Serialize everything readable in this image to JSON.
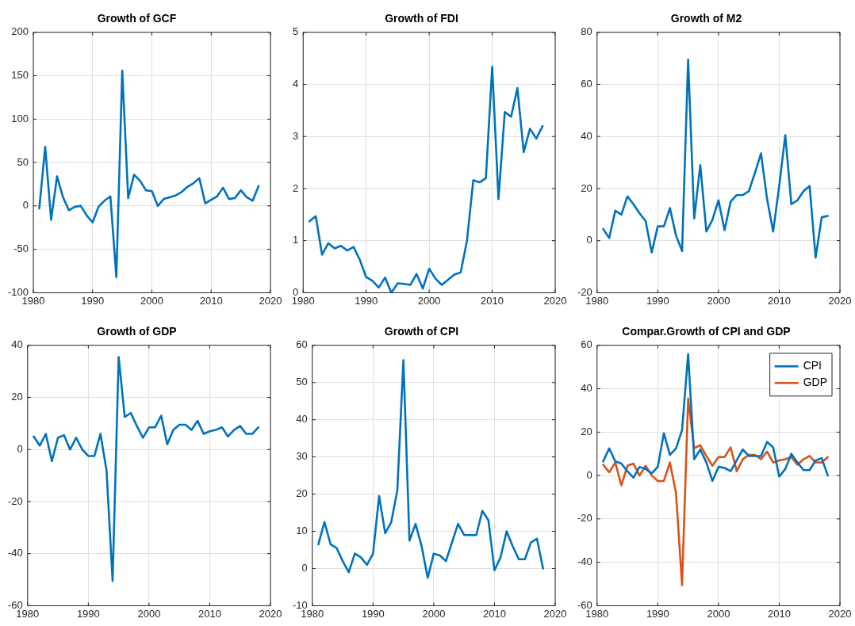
{
  "chart_data": [
    {
      "type": "line",
      "title": "Growth of GCF",
      "x": [
        1981,
        1982,
        1983,
        1984,
        1985,
        1986,
        1987,
        1988,
        1989,
        1990,
        1991,
        1992,
        1993,
        1994,
        1995,
        1996,
        1997,
        1998,
        1999,
        2000,
        2001,
        2002,
        2003,
        2004,
        2005,
        2006,
        2007,
        2008,
        2009,
        2010,
        2011,
        2012,
        2013,
        2014,
        2015,
        2016,
        2017,
        2018
      ],
      "series": [
        {
          "color": "#0072bd",
          "values": [
            -3,
            68,
            -16,
            34,
            10,
            -5,
            -1,
            0,
            -11,
            -19,
            -1,
            6,
            11,
            -82,
            156,
            9,
            36,
            29,
            18,
            17,
            0,
            8,
            10,
            12,
            16,
            22,
            26,
            32,
            3,
            7,
            11,
            21,
            8,
            9,
            18,
            10,
            6,
            23
          ]
        }
      ],
      "xlim": [
        1980,
        2020
      ],
      "xticks": [
        1980,
        1990,
        2000,
        2010,
        2020
      ],
      "ylim": [
        -100,
        200
      ],
      "yticks": [
        -100,
        -50,
        0,
        50,
        100,
        150,
        200
      ],
      "grid": true
    },
    {
      "type": "line",
      "title": "Growth of FDI",
      "x": [
        1981,
        1982,
        1983,
        1984,
        1985,
        1986,
        1987,
        1988,
        1989,
        1990,
        1991,
        1992,
        1993,
        1994,
        1995,
        1996,
        1997,
        1998,
        1999,
        2000,
        2001,
        2002,
        2003,
        2004,
        2005,
        2006,
        2007,
        2008,
        2009,
        2010,
        2011,
        2012,
        2013,
        2014,
        2015,
        2016,
        2017,
        2018
      ],
      "series": [
        {
          "color": "#0072bd",
          "values": [
            1.37,
            1.47,
            0.73,
            0.95,
            0.85,
            0.9,
            0.81,
            0.88,
            0.63,
            0.3,
            0.23,
            0.1,
            0.29,
            0,
            0.18,
            0.17,
            0.15,
            0.36,
            0.08,
            0.46,
            0.27,
            0.15,
            0.25,
            0.35,
            0.39,
            1.0,
            2.16,
            2.12,
            2.2,
            4.34,
            1.8,
            3.47,
            3.38,
            3.93,
            2.7,
            3.15,
            2.96,
            3.2
          ]
        }
      ],
      "xlim": [
        1980,
        2020
      ],
      "xticks": [
        1980,
        1990,
        2000,
        2010,
        2020
      ],
      "ylim": [
        0,
        5
      ],
      "yticks": [
        0,
        1,
        2,
        3,
        4,
        5
      ],
      "grid": true
    },
    {
      "type": "line",
      "title": "Growth of M2",
      "x": [
        1981,
        1982,
        1983,
        1984,
        1985,
        1986,
        1987,
        1988,
        1989,
        1990,
        1991,
        1992,
        1993,
        1994,
        1995,
        1996,
        1997,
        1998,
        1999,
        2000,
        2001,
        2002,
        2003,
        2004,
        2005,
        2006,
        2007,
        2008,
        2009,
        2010,
        2011,
        2012,
        2013,
        2014,
        2015,
        2016,
        2017,
        2018
      ],
      "series": [
        {
          "color": "#0072bd",
          "values": [
            4.5,
            1,
            11.5,
            10,
            17,
            14,
            10.5,
            7.5,
            -4.5,
            5.5,
            5.5,
            12.5,
            2,
            -4,
            69.5,
            8.5,
            29,
            3.5,
            8,
            15.5,
            4,
            15,
            17.5,
            17.5,
            19,
            26,
            33.5,
            16,
            3.5,
            21,
            40.5,
            14,
            15.5,
            19,
            21,
            -6.5,
            9,
            9.5
          ]
        }
      ],
      "xlim": [
        1980,
        2020
      ],
      "xticks": [
        1980,
        1990,
        2000,
        2010,
        2020
      ],
      "ylim": [
        -20,
        80
      ],
      "yticks": [
        -20,
        0,
        20,
        40,
        60,
        80
      ],
      "grid": true
    },
    {
      "type": "line",
      "title": "Growth of GDP",
      "x": [
        1981,
        1982,
        1983,
        1984,
        1985,
        1986,
        1987,
        1988,
        1989,
        1990,
        1991,
        1992,
        1993,
        1994,
        1995,
        1996,
        1997,
        1998,
        1999,
        2000,
        2001,
        2002,
        2003,
        2004,
        2005,
        2006,
        2007,
        2008,
        2009,
        2010,
        2011,
        2012,
        2013,
        2014,
        2015,
        2016,
        2017,
        2018
      ],
      "series": [
        {
          "color": "#0072bd",
          "values": [
            5,
            1.5,
            6,
            -4.5,
            4.5,
            5.5,
            0,
            4.5,
            0,
            -2.5,
            -2.5,
            6,
            -8,
            -50.5,
            35.5,
            12.5,
            14,
            9,
            4.5,
            8.5,
            8.5,
            13,
            2,
            7.5,
            9.5,
            9.5,
            7.5,
            11,
            6,
            7,
            7.5,
            8.5,
            5,
            7.5,
            9,
            6,
            6,
            8.5
          ]
        }
      ],
      "xlim": [
        1980,
        2020
      ],
      "xticks": [
        1980,
        1990,
        2000,
        2010,
        2020
      ],
      "ylim": [
        -60,
        40
      ],
      "yticks": [
        -60,
        -40,
        -20,
        0,
        20,
        40
      ],
      "grid": true
    },
    {
      "type": "line",
      "title": "Growth of CPI",
      "x": [
        1981,
        1982,
        1983,
        1984,
        1985,
        1986,
        1987,
        1988,
        1989,
        1990,
        1991,
        1992,
        1993,
        1994,
        1995,
        1996,
        1997,
        1998,
        1999,
        2000,
        2001,
        2002,
        2003,
        2004,
        2005,
        2006,
        2007,
        2008,
        2009,
        2010,
        2011,
        2012,
        2013,
        2014,
        2015,
        2016,
        2017,
        2018
      ],
      "series": [
        {
          "color": "#0072bd",
          "values": [
            6.5,
            12.5,
            6.5,
            5.5,
            2,
            -1,
            4,
            3,
            1,
            4,
            19.5,
            9.5,
            12.5,
            21,
            56,
            7.5,
            12,
            6,
            -2.5,
            4,
            3.5,
            2,
            7,
            12,
            9,
            9,
            9,
            15.5,
            13,
            -0.5,
            3,
            10,
            6,
            2.5,
            2.5,
            7,
            8,
            0
          ]
        }
      ],
      "xlim": [
        1980,
        2020
      ],
      "xticks": [
        1980,
        1990,
        2000,
        2010,
        2020
      ],
      "ylim": [
        -10,
        60
      ],
      "yticks": [
        -10,
        0,
        10,
        20,
        30,
        40,
        50,
        60
      ],
      "grid": true
    },
    {
      "type": "line",
      "title": "Compar.Growth of CPI and GDP",
      "x": [
        1981,
        1982,
        1983,
        1984,
        1985,
        1986,
        1987,
        1988,
        1989,
        1990,
        1991,
        1992,
        1993,
        1994,
        1995,
        1996,
        1997,
        1998,
        1999,
        2000,
        2001,
        2002,
        2003,
        2004,
        2005,
        2006,
        2007,
        2008,
        2009,
        2010,
        2011,
        2012,
        2013,
        2014,
        2015,
        2016,
        2017,
        2018
      ],
      "series": [
        {
          "name": "CPI",
          "color": "#0072bd",
          "values": [
            6.5,
            12.5,
            6.5,
            5.5,
            2,
            -1,
            4,
            3,
            1,
            4,
            19.5,
            9.5,
            12.5,
            21,
            56,
            7.5,
            12,
            6,
            -2.5,
            4,
            3.5,
            2,
            7,
            12,
            9,
            9,
            9,
            15.5,
            13,
            -0.5,
            3,
            10,
            6,
            2.5,
            2.5,
            7,
            8,
            0
          ]
        },
        {
          "name": "GDP",
          "color": "#d95319",
          "values": [
            5,
            1.5,
            6,
            -4.5,
            4.5,
            5.5,
            0,
            4.5,
            0,
            -2.5,
            -2.5,
            6,
            -8,
            -50.5,
            35.5,
            12.5,
            14,
            9,
            4.5,
            8.5,
            8.5,
            13,
            2,
            7.5,
            9.5,
            9.5,
            7.5,
            11,
            6,
            7,
            7.5,
            8.5,
            5,
            7.5,
            9,
            6,
            6,
            8.5
          ]
        }
      ],
      "xlim": [
        1980,
        2020
      ],
      "xticks": [
        1980,
        1990,
        2000,
        2010,
        2020
      ],
      "ylim": [
        -60,
        60
      ],
      "yticks": [
        -60,
        -40,
        -20,
        0,
        20,
        40,
        60
      ],
      "grid": true,
      "legend": "top right"
    }
  ]
}
